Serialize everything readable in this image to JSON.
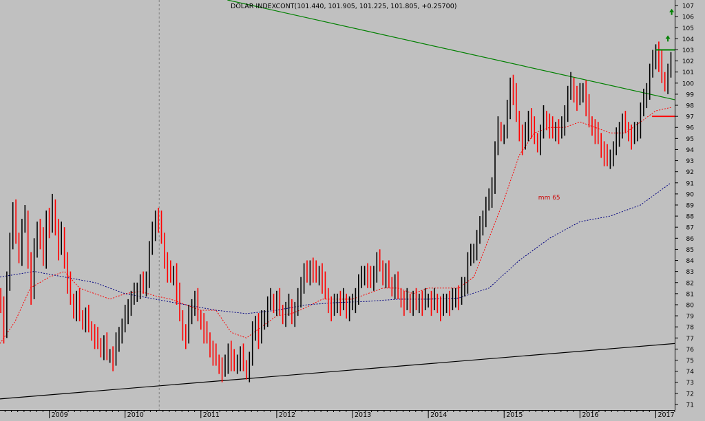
{
  "header": {
    "quote": "DOLAR INDEXCONT(101.440, 101.905, 101.225, 101.805, +0.25700)"
  },
  "chart_data": {
    "type": "candlestick",
    "title": "DOLAR INDEXCONT(101.440, 101.905, 101.225, 101.805, +0.25700)",
    "ohlc_last": {
      "open": 101.44,
      "high": 101.905,
      "low": 101.225,
      "close": 101.805,
      "change": 0.257
    },
    "ylim": [
      70.5,
      107.5
    ],
    "y_ticks": [
      71,
      72,
      73,
      74,
      75,
      76,
      77,
      78,
      79,
      80,
      81,
      82,
      83,
      84,
      85,
      86,
      87,
      88,
      89,
      90,
      91,
      92,
      93,
      94,
      95,
      96,
      97,
      98,
      99,
      100,
      101,
      102,
      103,
      104,
      105,
      106,
      107
    ],
    "x_ticks": [
      "2009",
      "2010",
      "2011",
      "2012",
      "2013",
      "2014",
      "2015",
      "2016",
      "2017"
    ],
    "x_range": [
      2008.35,
      2017.25
    ],
    "grid": false,
    "colors": {
      "up": "#000000",
      "down": "#ff0000",
      "ma_short": "#ff0000",
      "ma_long": "#000080",
      "trend_down": "#008000",
      "trend_up": "#000000",
      "background": "#c0c0c0"
    },
    "annotations": {
      "ma_label": "mm 65"
    },
    "closes": [
      [
        2008.36,
        80.0
      ],
      [
        2008.4,
        77.5
      ],
      [
        2008.44,
        82.0
      ],
      [
        2008.48,
        86.0
      ],
      [
        2008.52,
        88.5
      ],
      [
        2008.56,
        86.0
      ],
      [
        2008.6,
        84.5
      ],
      [
        2008.64,
        87.0
      ],
      [
        2008.68,
        88.0
      ],
      [
        2008.72,
        84.0
      ],
      [
        2008.76,
        81.0
      ],
      [
        2008.8,
        85.0
      ],
      [
        2008.84,
        87.0
      ],
      [
        2008.88,
        86.0
      ],
      [
        2008.92,
        84.0
      ],
      [
        2008.96,
        88.0
      ],
      [
        2009.0,
        87.0
      ],
      [
        2009.04,
        89.0
      ],
      [
        2009.08,
        87.0
      ],
      [
        2009.12,
        85.0
      ],
      [
        2009.16,
        86.5
      ],
      [
        2009.2,
        84.0
      ],
      [
        2009.24,
        82.0
      ],
      [
        2009.28,
        80.5
      ],
      [
        2009.32,
        79.5
      ],
      [
        2009.36,
        80.5
      ],
      [
        2009.4,
        79.0
      ],
      [
        2009.44,
        78.5
      ],
      [
        2009.48,
        79.0
      ],
      [
        2009.52,
        78.0
      ],
      [
        2009.56,
        77.5
      ],
      [
        2009.6,
        77.0
      ],
      [
        2009.64,
        76.5
      ],
      [
        2009.68,
        76.0
      ],
      [
        2009.72,
        76.5
      ],
      [
        2009.76,
        75.5
      ],
      [
        2009.8,
        75.5
      ],
      [
        2009.84,
        75.0
      ],
      [
        2009.88,
        76.5
      ],
      [
        2009.92,
        77.5
      ],
      [
        2009.96,
        78.0
      ],
      [
        2010.0,
        79.0
      ],
      [
        2010.04,
        80.0
      ],
      [
        2010.08,
        80.5
      ],
      [
        2010.12,
        81.0
      ],
      [
        2010.16,
        81.5
      ],
      [
        2010.2,
        82.0
      ],
      [
        2010.24,
        81.5
      ],
      [
        2010.28,
        82.5
      ],
      [
        2010.32,
        85.0
      ],
      [
        2010.36,
        86.5
      ],
      [
        2010.4,
        88.0
      ],
      [
        2010.44,
        87.5
      ],
      [
        2010.48,
        86.0
      ],
      [
        2010.52,
        84.0
      ],
      [
        2010.56,
        83.0
      ],
      [
        2010.6,
        82.5
      ],
      [
        2010.64,
        83.0
      ],
      [
        2010.68,
        81.0
      ],
      [
        2010.72,
        79.0
      ],
      [
        2010.76,
        77.5
      ],
      [
        2010.8,
        77.0
      ],
      [
        2010.84,
        79.0
      ],
      [
        2010.88,
        80.0
      ],
      [
        2010.92,
        80.5
      ],
      [
        2010.96,
        79.0
      ],
      [
        2011.0,
        78.5
      ],
      [
        2011.04,
        77.5
      ],
      [
        2011.08,
        77.0
      ],
      [
        2011.12,
        76.0
      ],
      [
        2011.16,
        75.5
      ],
      [
        2011.2,
        75.0
      ],
      [
        2011.24,
        74.5
      ],
      [
        2011.28,
        74.0
      ],
      [
        2011.32,
        74.5
      ],
      [
        2011.36,
        76.0
      ],
      [
        2011.4,
        75.0
      ],
      [
        2011.44,
        74.5
      ],
      [
        2011.48,
        75.0
      ],
      [
        2011.52,
        75.5
      ],
      [
        2011.56,
        74.5
      ],
      [
        2011.6,
        74.0
      ],
      [
        2011.64,
        75.0
      ],
      [
        2011.68,
        77.5
      ],
      [
        2011.72,
        78.5
      ],
      [
        2011.76,
        77.0
      ],
      [
        2011.8,
        78.5
      ],
      [
        2011.84,
        79.0
      ],
      [
        2011.88,
        80.0
      ],
      [
        2011.92,
        80.5
      ],
      [
        2011.96,
        80.0
      ],
      [
        2012.0,
        80.5
      ],
      [
        2012.04,
        79.5
      ],
      [
        2012.08,
        79.0
      ],
      [
        2012.12,
        79.5
      ],
      [
        2012.16,
        80.0
      ],
      [
        2012.2,
        79.0
      ],
      [
        2012.24,
        79.5
      ],
      [
        2012.28,
        80.5
      ],
      [
        2012.32,
        82.0
      ],
      [
        2012.36,
        83.0
      ],
      [
        2012.4,
        82.5
      ],
      [
        2012.44,
        83.5
      ],
      [
        2012.48,
        83.0
      ],
      [
        2012.52,
        82.5
      ],
      [
        2012.56,
        83.0
      ],
      [
        2012.6,
        82.0
      ],
      [
        2012.64,
        81.0
      ],
      [
        2012.68,
        80.0
      ],
      [
        2012.72,
        79.5
      ],
      [
        2012.76,
        80.0
      ],
      [
        2012.8,
        80.5
      ],
      [
        2012.84,
        80.0
      ],
      [
        2012.88,
        80.5
      ],
      [
        2012.92,
        79.5
      ],
      [
        2012.96,
        80.0
      ],
      [
        2013.0,
        80.0
      ],
      [
        2013.04,
        81.0
      ],
      [
        2013.08,
        82.0
      ],
      [
        2013.12,
        82.5
      ],
      [
        2013.16,
        83.0
      ],
      [
        2013.2,
        82.5
      ],
      [
        2013.24,
        82.0
      ],
      [
        2013.28,
        83.0
      ],
      [
        2013.32,
        84.0
      ],
      [
        2013.36,
        83.5
      ],
      [
        2013.4,
        82.5
      ],
      [
        2013.44,
        83.0
      ],
      [
        2013.48,
        82.0
      ],
      [
        2013.52,
        81.5
      ],
      [
        2013.56,
        82.0
      ],
      [
        2013.6,
        81.0
      ],
      [
        2013.64,
        80.5
      ],
      [
        2013.68,
        80.0
      ],
      [
        2013.72,
        80.5
      ],
      [
        2013.76,
        80.0
      ],
      [
        2013.8,
        80.5
      ],
      [
        2013.84,
        80.0
      ],
      [
        2013.88,
        80.5
      ],
      [
        2013.92,
        80.0
      ],
      [
        2013.96,
        80.5
      ],
      [
        2014.0,
        80.5
      ],
      [
        2014.04,
        80.0
      ],
      [
        2014.08,
        80.5
      ],
      [
        2014.12,
        80.0
      ],
      [
        2014.16,
        79.5
      ],
      [
        2014.2,
        80.0
      ],
      [
        2014.24,
        80.5
      ],
      [
        2014.28,
        80.0
      ],
      [
        2014.32,
        80.5
      ],
      [
        2014.36,
        81.0
      ],
      [
        2014.4,
        80.5
      ],
      [
        2014.44,
        81.5
      ],
      [
        2014.48,
        82.0
      ],
      [
        2014.52,
        84.0
      ],
      [
        2014.56,
        84.5
      ],
      [
        2014.6,
        85.0
      ],
      [
        2014.64,
        86.0
      ],
      [
        2014.68,
        87.0
      ],
      [
        2014.72,
        88.0
      ],
      [
        2014.76,
        89.0
      ],
      [
        2014.8,
        89.5
      ],
      [
        2014.84,
        91.0
      ],
      [
        2014.88,
        94.0
      ],
      [
        2014.92,
        96.0
      ],
      [
        2014.96,
        95.5
      ],
      [
        2015.0,
        95.5
      ],
      [
        2015.04,
        97.5
      ],
      [
        2015.08,
        100.0
      ],
      [
        2015.12,
        99.0
      ],
      [
        2015.16,
        97.0
      ],
      [
        2015.2,
        95.5
      ],
      [
        2015.24,
        94.5
      ],
      [
        2015.28,
        95.5
      ],
      [
        2015.32,
        97.0
      ],
      [
        2015.36,
        96.0
      ],
      [
        2015.4,
        95.0
      ],
      [
        2015.44,
        94.5
      ],
      [
        2015.48,
        95.5
      ],
      [
        2015.52,
        97.0
      ],
      [
        2015.56,
        96.5
      ],
      [
        2015.6,
        96.0
      ],
      [
        2015.64,
        95.5
      ],
      [
        2015.68,
        96.0
      ],
      [
        2015.72,
        95.5
      ],
      [
        2015.76,
        96.0
      ],
      [
        2015.8,
        97.5
      ],
      [
        2015.84,
        99.0
      ],
      [
        2015.88,
        100.0
      ],
      [
        2015.92,
        99.0
      ],
      [
        2015.96,
        98.5
      ],
      [
        2016.0,
        99.0
      ],
      [
        2016.04,
        99.5
      ],
      [
        2016.08,
        98.0
      ],
      [
        2016.12,
        96.5
      ],
      [
        2016.16,
        96.0
      ],
      [
        2016.2,
        95.5
      ],
      [
        2016.24,
        95.0
      ],
      [
        2016.28,
        94.0
      ],
      [
        2016.32,
        93.5
      ],
      [
        2016.36,
        93.0
      ],
      [
        2016.4,
        93.5
      ],
      [
        2016.44,
        94.0
      ],
      [
        2016.48,
        95.0
      ],
      [
        2016.52,
        96.0
      ],
      [
        2016.56,
        96.5
      ],
      [
        2016.6,
        96.0
      ],
      [
        2016.64,
        95.5
      ],
      [
        2016.68,
        95.0
      ],
      [
        2016.72,
        95.5
      ],
      [
        2016.76,
        96.0
      ],
      [
        2016.8,
        97.5
      ],
      [
        2016.84,
        98.5
      ],
      [
        2016.88,
        99.5
      ],
      [
        2016.92,
        101.0
      ],
      [
        2016.96,
        102.0
      ],
      [
        2017.0,
        103.0
      ],
      [
        2017.04,
        102.0
      ],
      [
        2017.08,
        100.5
      ],
      [
        2017.12,
        100.0
      ],
      [
        2017.16,
        101.0
      ],
      [
        2017.2,
        101.8
      ]
    ],
    "ma_short": [
      [
        2008.35,
        76.5
      ],
      [
        2008.55,
        78.5
      ],
      [
        2008.75,
        81.5
      ],
      [
        2009.0,
        82.5
      ],
      [
        2009.2,
        83.0
      ],
      [
        2009.4,
        81.5
      ],
      [
        2009.6,
        81.0
      ],
      [
        2009.8,
        80.5
      ],
      [
        2010.0,
        81.0
      ],
      [
        2010.2,
        81.2
      ],
      [
        2010.4,
        80.8
      ],
      [
        2010.6,
        80.5
      ],
      [
        2010.8,
        80.0
      ],
      [
        2011.0,
        79.5
      ],
      [
        2011.2,
        79.5
      ],
      [
        2011.4,
        77.5
      ],
      [
        2011.6,
        77.0
      ],
      [
        2011.8,
        78.0
      ],
      [
        2012.0,
        79.0
      ],
      [
        2012.2,
        79.2
      ],
      [
        2012.4,
        79.8
      ],
      [
        2012.6,
        80.5
      ],
      [
        2012.8,
        80.5
      ],
      [
        2013.0,
        80.5
      ],
      [
        2013.2,
        81.0
      ],
      [
        2013.4,
        81.5
      ],
      [
        2013.6,
        81.5
      ],
      [
        2013.8,
        81.0
      ],
      [
        2014.0,
        81.5
      ],
      [
        2014.2,
        81.5
      ],
      [
        2014.4,
        81.5
      ],
      [
        2014.6,
        82.5
      ],
      [
        2014.8,
        86.0
      ],
      [
        2015.0,
        89.5
      ],
      [
        2015.2,
        93.5
      ],
      [
        2015.4,
        95.5
      ],
      [
        2015.6,
        96.0
      ],
      [
        2015.8,
        96.0
      ],
      [
        2016.0,
        96.5
      ],
      [
        2016.2,
        96.0
      ],
      [
        2016.4,
        95.5
      ],
      [
        2016.6,
        95.5
      ],
      [
        2016.8,
        96.5
      ],
      [
        2017.0,
        97.5
      ],
      [
        2017.2,
        97.8
      ]
    ],
    "ma_long": [
      [
        2008.35,
        82.5
      ],
      [
        2008.8,
        83.0
      ],
      [
        2009.2,
        82.5
      ],
      [
        2009.6,
        82.0
      ],
      [
        2010.0,
        81.0
      ],
      [
        2010.4,
        80.5
      ],
      [
        2010.8,
        80.0
      ],
      [
        2011.2,
        79.5
      ],
      [
        2011.6,
        79.2
      ],
      [
        2012.0,
        79.5
      ],
      [
        2012.4,
        80.0
      ],
      [
        2012.8,
        80.2
      ],
      [
        2013.2,
        80.3
      ],
      [
        2013.6,
        80.5
      ],
      [
        2014.0,
        80.5
      ],
      [
        2014.4,
        80.6
      ],
      [
        2014.8,
        81.5
      ],
      [
        2015.2,
        84.0
      ],
      [
        2015.6,
        86.0
      ],
      [
        2016.0,
        87.5
      ],
      [
        2016.4,
        88.0
      ],
      [
        2016.8,
        89.0
      ],
      [
        2017.2,
        91.0
      ]
    ],
    "trend_down": [
      [
        2011.35,
        107.5
      ],
      [
        2017.25,
        98.5
      ]
    ],
    "trend_up": [
      [
        2008.35,
        71.5
      ],
      [
        2017.25,
        76.5
      ]
    ],
    "hlines": [
      {
        "color": "#008000",
        "x1": 2017.0,
        "x2": 2017.25,
        "y": 103.0
      },
      {
        "color": "#ff0000",
        "x1": 2016.95,
        "x2": 2017.25,
        "y": 97.0
      }
    ],
    "arrows": [
      {
        "x": 2017.21,
        "y": 106.4
      },
      {
        "x": 2017.16,
        "y": 104.0
      }
    ],
    "vline_date": 2010.45
  }
}
